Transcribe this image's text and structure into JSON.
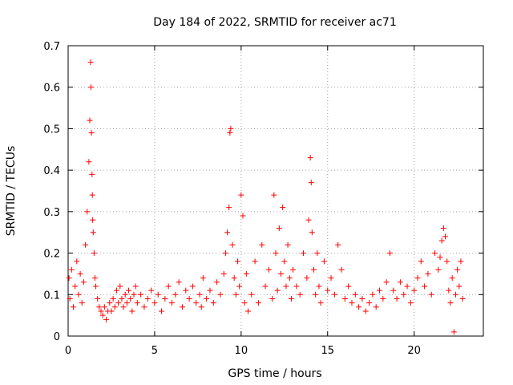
{
  "chart_data": {
    "type": "scatter",
    "title": "Day 184 of 2022, SRMTID for receiver ac71",
    "xlabel": "GPS time / hours",
    "ylabel": "SRMTID / TECUs",
    "xlim": [
      0,
      24
    ],
    "ylim": [
      0,
      0.7
    ],
    "xticks": [
      0,
      5,
      10,
      15,
      20
    ],
    "yticks": [
      0,
      0.1,
      0.2,
      0.3,
      0.4,
      0.5,
      0.6,
      0.7
    ],
    "ytick_labels": [
      "0",
      "0.1",
      "0.2",
      "0.3",
      "0.4",
      "0.5",
      "0.6",
      "0.7"
    ],
    "grid": true,
    "marker": "+",
    "series": [
      {
        "name": "SRMTID",
        "color": "#ff0000",
        "x": [
          0.05,
          0.1,
          0.2,
          0.3,
          0.4,
          0.5,
          0.6,
          0.7,
          0.8,
          0.9,
          1.0,
          1.1,
          1.2,
          1.25,
          1.3,
          1.32,
          1.35,
          1.38,
          1.4,
          1.42,
          1.45,
          1.5,
          1.55,
          1.6,
          1.7,
          1.8,
          1.9,
          2.0,
          2.1,
          2.2,
          2.3,
          2.4,
          2.5,
          2.6,
          2.7,
          2.8,
          2.9,
          3.0,
          3.1,
          3.2,
          3.3,
          3.4,
          3.5,
          3.6,
          3.7,
          3.8,
          3.9,
          4.0,
          4.2,
          4.4,
          4.6,
          4.8,
          5.0,
          5.2,
          5.4,
          5.6,
          5.8,
          6.0,
          6.2,
          6.4,
          6.6,
          6.8,
          7.0,
          7.2,
          7.4,
          7.6,
          7.7,
          7.8,
          8.0,
          8.2,
          8.4,
          8.6,
          8.8,
          9.0,
          9.1,
          9.2,
          9.3,
          9.35,
          9.4,
          9.5,
          9.6,
          9.7,
          9.8,
          9.9,
          10.0,
          10.1,
          10.2,
          10.3,
          10.4,
          10.6,
          10.8,
          11.0,
          11.2,
          11.4,
          11.6,
          11.8,
          11.9,
          12.0,
          12.1,
          12.2,
          12.3,
          12.4,
          12.5,
          12.6,
          12.7,
          12.8,
          12.9,
          13.0,
          13.2,
          13.4,
          13.6,
          13.8,
          13.9,
          14.0,
          14.05,
          14.1,
          14.2,
          14.3,
          14.4,
          14.5,
          14.6,
          14.8,
          15.0,
          15.2,
          15.4,
          15.6,
          15.8,
          16.0,
          16.2,
          16.4,
          16.6,
          16.8,
          17.0,
          17.2,
          17.4,
          17.6,
          17.8,
          18.0,
          18.2,
          18.4,
          18.6,
          18.8,
          19.0,
          19.2,
          19.4,
          19.6,
          19.8,
          20.0,
          20.2,
          20.4,
          20.6,
          20.8,
          21.0,
          21.2,
          21.4,
          21.5,
          21.6,
          21.7,
          21.8,
          21.9,
          22.0,
          22.1,
          22.2,
          22.3,
          22.4,
          22.5,
          22.6,
          22.7,
          22.8
        ],
        "y": [
          0.14,
          0.09,
          0.16,
          0.07,
          0.12,
          0.18,
          0.1,
          0.15,
          0.08,
          0.13,
          0.22,
          0.3,
          0.42,
          0.52,
          0.66,
          0.6,
          0.49,
          0.39,
          0.34,
          0.28,
          0.25,
          0.2,
          0.14,
          0.12,
          0.09,
          0.07,
          0.06,
          0.05,
          0.07,
          0.04,
          0.06,
          0.08,
          0.06,
          0.09,
          0.07,
          0.11,
          0.08,
          0.12,
          0.09,
          0.07,
          0.1,
          0.08,
          0.11,
          0.09,
          0.06,
          0.1,
          0.12,
          0.08,
          0.1,
          0.07,
          0.09,
          0.11,
          0.08,
          0.1,
          0.06,
          0.09,
          0.12,
          0.08,
          0.1,
          0.13,
          0.07,
          0.11,
          0.09,
          0.12,
          0.08,
          0.1,
          0.07,
          0.14,
          0.09,
          0.11,
          0.08,
          0.13,
          0.1,
          0.15,
          0.2,
          0.25,
          0.31,
          0.49,
          0.5,
          0.22,
          0.14,
          0.1,
          0.18,
          0.12,
          0.34,
          0.29,
          0.08,
          0.15,
          0.06,
          0.1,
          0.18,
          0.08,
          0.22,
          0.12,
          0.16,
          0.09,
          0.34,
          0.2,
          0.11,
          0.26,
          0.15,
          0.31,
          0.18,
          0.12,
          0.22,
          0.14,
          0.09,
          0.16,
          0.12,
          0.1,
          0.2,
          0.14,
          0.28,
          0.43,
          0.37,
          0.25,
          0.16,
          0.1,
          0.2,
          0.12,
          0.08,
          0.18,
          0.11,
          0.14,
          0.1,
          0.22,
          0.16,
          0.09,
          0.12,
          0.08,
          0.1,
          0.07,
          0.09,
          0.06,
          0.08,
          0.1,
          0.07,
          0.11,
          0.09,
          0.13,
          0.2,
          0.11,
          0.09,
          0.13,
          0.1,
          0.12,
          0.08,
          0.11,
          0.14,
          0.18,
          0.12,
          0.15,
          0.1,
          0.2,
          0.16,
          0.19,
          0.23,
          0.26,
          0.24,
          0.18,
          0.11,
          0.08,
          0.14,
          0.01,
          0.1,
          0.16,
          0.12,
          0.18,
          0.09
        ]
      }
    ]
  }
}
